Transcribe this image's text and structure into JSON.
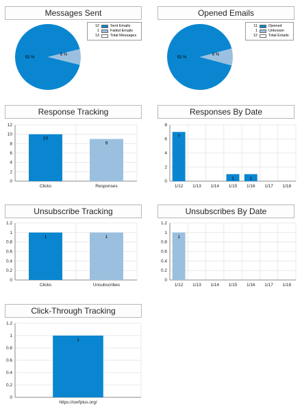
{
  "panels": {
    "messages_sent": {
      "title": "Messages Sent"
    },
    "opened_emails": {
      "title": "Opened Emails"
    },
    "response_tracking": {
      "title": "Response Tracking"
    },
    "responses_by_date": {
      "title": "Responses By Date"
    },
    "unsubscribe_tracking": {
      "title": "Unsubscribe Tracking"
    },
    "unsubscribes_by_date": {
      "title": "Unsubscribes By Date"
    },
    "click_through_tracking": {
      "title": "Click-Through Tracking"
    }
  },
  "colors": {
    "primary": "#0a86d0",
    "secondary": "#9bc0df",
    "grid": "#e3e3e3",
    "axis": "#8a8a8a"
  },
  "chart_data": [
    {
      "type": "pie",
      "title": "Messages Sent",
      "slices": [
        {
          "label": "Sent Emails",
          "value": 12,
          "pct_label": "92 %"
        },
        {
          "label": "Failed Emails",
          "value": 1,
          "pct_label": "8 %"
        }
      ],
      "legend": [
        {
          "count": "12",
          "label": "Sent Emails"
        },
        {
          "count": "1",
          "label": "Failed Emails"
        },
        {
          "count": "13",
          "label": "Total Messages"
        }
      ],
      "legend_position": "top-right"
    },
    {
      "type": "pie",
      "title": "Opened Emails",
      "slices": [
        {
          "label": "Opened",
          "value": 11,
          "pct_label": "92 %"
        },
        {
          "label": "Unknown",
          "value": 1,
          "pct_label": "8 %"
        }
      ],
      "legend": [
        {
          "count": "11",
          "label": "Opened"
        },
        {
          "count": "1",
          "label": "Unknown"
        },
        {
          "count": "12",
          "label": "Total Emails"
        }
      ],
      "legend_position": "top-right"
    },
    {
      "type": "bar",
      "title": "Response Tracking",
      "categories": [
        "Clicks",
        "Responses"
      ],
      "values": [
        10,
        9
      ],
      "value_labels": [
        "10",
        "9"
      ],
      "bar_colors": [
        "#0a86d0",
        "#9bc0df"
      ],
      "ylim": [
        0,
        12
      ],
      "yticks": [
        "0",
        "2",
        "4",
        "6",
        "8",
        "10",
        "12"
      ],
      "grid": true
    },
    {
      "type": "bar",
      "title": "Responses By Date",
      "categories": [
        "1/12",
        "1/13",
        "1/14",
        "1/15",
        "1/16",
        "1/17",
        "1/18"
      ],
      "values": [
        7,
        0,
        0,
        1,
        1,
        0,
        0
      ],
      "value_labels": [
        "7",
        "",
        "",
        "1",
        "1",
        "",
        ""
      ],
      "bar_colors": [
        "#0a86d0",
        "#0a86d0",
        "#0a86d0",
        "#0a86d0",
        "#0a86d0",
        "#0a86d0",
        "#0a86d0"
      ],
      "ylim": [
        0,
        8
      ],
      "yticks": [
        "0",
        "2",
        "4",
        "6",
        "8"
      ],
      "grid": true
    },
    {
      "type": "bar",
      "title": "Unsubscribe Tracking",
      "categories": [
        "Clicks",
        "Unsubscribes"
      ],
      "values": [
        1,
        1
      ],
      "value_labels": [
        "1",
        "1"
      ],
      "bar_colors": [
        "#0a86d0",
        "#9bc0df"
      ],
      "ylim": [
        0,
        1.2
      ],
      "yticks": [
        "0",
        "0.2",
        "0.4",
        "0.6",
        "0.8",
        "1",
        "1.2"
      ],
      "grid": true
    },
    {
      "type": "bar",
      "title": "Unsubscribes By Date",
      "categories": [
        "1/12",
        "1/13",
        "1/14",
        "1/15",
        "1/16",
        "1/17",
        "1/18"
      ],
      "values": [
        1,
        0,
        0,
        0,
        0,
        0,
        0
      ],
      "value_labels": [
        "1",
        "",
        "",
        "",
        "",
        "",
        ""
      ],
      "bar_colors": [
        "#9bc0df",
        "#9bc0df",
        "#9bc0df",
        "#9bc0df",
        "#9bc0df",
        "#9bc0df",
        "#9bc0df"
      ],
      "ylim": [
        0,
        1.2
      ],
      "yticks": [
        "0",
        "0.2",
        "0.4",
        "0.6",
        "0.8",
        "1",
        "1.2"
      ],
      "grid": true
    },
    {
      "type": "bar",
      "title": "Click-Through Tracking",
      "categories": [
        "https://cerfplus.org/"
      ],
      "values": [
        1
      ],
      "value_labels": [
        "1"
      ],
      "bar_colors": [
        "#0a86d0"
      ],
      "ylim": [
        0,
        1.2
      ],
      "yticks": [
        "0",
        "0.2",
        "0.4",
        "0.6",
        "0.8",
        "1",
        "1.2"
      ],
      "grid": true
    }
  ]
}
